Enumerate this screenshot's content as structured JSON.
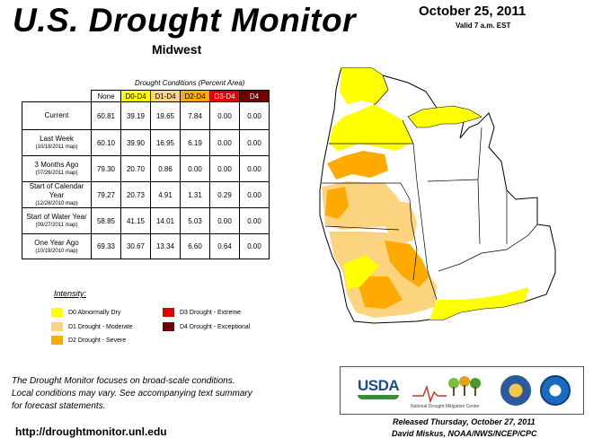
{
  "header": {
    "title": "U.S. Drought Monitor",
    "region": "Midwest",
    "date": "October 25, 2011",
    "valid": "Valid 7 a.m. EST"
  },
  "table": {
    "caption": "Drought Conditions (Percent Area)",
    "columns": [
      "None",
      "D0-D4",
      "D1-D4",
      "D2-D4",
      "D3-D4",
      "D4"
    ],
    "rows": [
      {
        "label": "Current",
        "sublabel": "",
        "values": [
          "60.81",
          "39.19",
          "19.65",
          "7.84",
          "0.00",
          "0.00"
        ]
      },
      {
        "label": "Last Week",
        "sublabel": "(10/18/2011 map)",
        "values": [
          "60.10",
          "39.90",
          "16.95",
          "6.19",
          "0.00",
          "0.00"
        ]
      },
      {
        "label": "3 Months Ago",
        "sublabel": "(07/26/2011 map)",
        "values": [
          "79.30",
          "20.70",
          "0.86",
          "0.00",
          "0.00",
          "0.00"
        ]
      },
      {
        "label": "Start of Calendar Year",
        "sublabel": "(12/28/2010 map)",
        "values": [
          "79.27",
          "20.73",
          "4.91",
          "1.31",
          "0.29",
          "0.00"
        ]
      },
      {
        "label": "Start of Water Year",
        "sublabel": "(09/27/2011 map)",
        "values": [
          "58.85",
          "41.15",
          "14.01",
          "5.03",
          "0.00",
          "0.00"
        ]
      },
      {
        "label": "One Year Ago",
        "sublabel": "(10/19/2010 map)",
        "values": [
          "69.33",
          "30.67",
          "13.34",
          "6.60",
          "0.64",
          "0.00"
        ]
      }
    ]
  },
  "legend": {
    "title": "Intensity:",
    "items": [
      {
        "label": "D0 Abnormally Dry",
        "color": "#ffff00"
      },
      {
        "label": "D1 Drought - Moderate",
        "color": "#fcd37f"
      },
      {
        "label": "D2 Drought - Severe",
        "color": "#ffaa00"
      },
      {
        "label": "D3 Drought - Extreme",
        "color": "#e60000"
      },
      {
        "label": "D4 Drought - Exceptional",
        "color": "#730000"
      }
    ]
  },
  "footer": {
    "note_line1": "The Drought Monitor focuses on broad-scale conditions.",
    "note_line2": "Local conditions may vary. See accompanying text summary",
    "note_line3": "for forecast statements.",
    "url": "http://droughtmonitor.unl.edu",
    "released": "Released Thursday, October 27, 2011",
    "author": "David Miskus, NOAA/NWS/NCEP/CPC"
  },
  "logos": {
    "usda": "USDA",
    "ndmc": "National Drought Mitigation Center"
  }
}
